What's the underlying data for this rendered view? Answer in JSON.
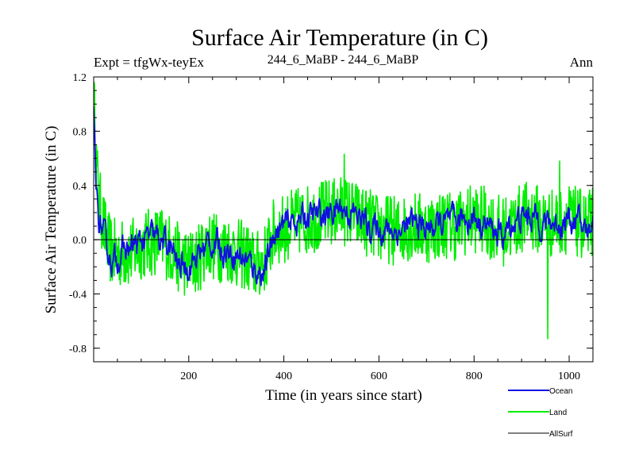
{
  "chart_data": {
    "type": "line",
    "title": "Surface Air Temperature (in C)",
    "subtitle_left": "Expt = tfgWx-teyEx",
    "subtitle_center": "244_6_MaBP - 244_6_MaBP",
    "subtitle_right": "Ann",
    "xlabel": "Time (in years since start)",
    "ylabel": "Surface Air Temperature (in C)",
    "xlim": [
      0,
      1050
    ],
    "ylim": [
      -0.9,
      1.2
    ],
    "x_ticks": [
      200,
      400,
      600,
      800,
      1000
    ],
    "x_tick_labels": [
      "200",
      "400",
      "600",
      "800",
      "1000"
    ],
    "y_ticks": [
      -0.8,
      -0.4,
      0.0,
      0.4,
      0.8,
      1.2
    ],
    "y_tick_labels": [
      "-0.8",
      "-0.4",
      "0.0",
      "0.4",
      "0.8",
      "1.2"
    ],
    "zero_line": true,
    "legend_position": "bottom-right",
    "series": [
      {
        "name": "Land",
        "color": "#00ee00",
        "points": [
          [
            0,
            1.08
          ],
          [
            5,
            0.62
          ],
          [
            10,
            0.32
          ],
          [
            20,
            0.12
          ],
          [
            30,
            -0.04
          ],
          [
            40,
            -0.1
          ],
          [
            60,
            -0.1
          ],
          [
            80,
            -0.1
          ],
          [
            100,
            -0.04
          ],
          [
            120,
            -0.02
          ],
          [
            140,
            0.0
          ],
          [
            160,
            -0.06
          ],
          [
            180,
            -0.14
          ],
          [
            200,
            -0.18
          ],
          [
            220,
            -0.14
          ],
          [
            240,
            -0.02
          ],
          [
            260,
            -0.06
          ],
          [
            280,
            -0.06
          ],
          [
            300,
            -0.1
          ],
          [
            320,
            -0.12
          ],
          [
            340,
            -0.2
          ],
          [
            360,
            -0.14
          ],
          [
            380,
            0.06
          ],
          [
            400,
            0.08
          ],
          [
            420,
            0.12
          ],
          [
            440,
            0.14
          ],
          [
            460,
            0.16
          ],
          [
            480,
            0.18
          ],
          [
            500,
            0.2
          ],
          [
            520,
            0.22
          ],
          [
            540,
            0.2
          ],
          [
            560,
            0.16
          ],
          [
            580,
            0.12
          ],
          [
            600,
            0.08
          ],
          [
            620,
            0.08
          ],
          [
            640,
            0.06
          ],
          [
            660,
            0.1
          ],
          [
            680,
            0.1
          ],
          [
            700,
            0.08
          ],
          [
            720,
            0.1
          ],
          [
            740,
            0.12
          ],
          [
            760,
            0.1
          ],
          [
            780,
            0.14
          ],
          [
            800,
            0.16
          ],
          [
            820,
            0.14
          ],
          [
            840,
            0.1
          ],
          [
            860,
            0.06
          ],
          [
            880,
            0.1
          ],
          [
            900,
            0.16
          ],
          [
            920,
            0.18
          ],
          [
            940,
            0.14
          ],
          [
            960,
            0.12
          ],
          [
            980,
            0.14
          ],
          [
            1000,
            0.16
          ],
          [
            1020,
            0.12
          ],
          [
            1040,
            0.1
          ],
          [
            1050,
            0.14
          ]
        ],
        "amplitude": 0.26,
        "spikes": [
          [
            955,
            -0.73
          ],
          [
            1040,
            -0.08
          ],
          [
            527,
            0.63
          ],
          [
            980,
            0.58
          ]
        ]
      },
      {
        "name": "Ocean",
        "color": "#1010e0",
        "points": [
          [
            0,
            0.92
          ],
          [
            5,
            0.38
          ],
          [
            10,
            0.16
          ],
          [
            20,
            0.04
          ],
          [
            30,
            -0.1
          ],
          [
            40,
            -0.16
          ],
          [
            60,
            -0.1
          ],
          [
            80,
            -0.06
          ],
          [
            100,
            -0.02
          ],
          [
            120,
            0.02
          ],
          [
            140,
            0.0
          ],
          [
            160,
            -0.06
          ],
          [
            180,
            -0.2
          ],
          [
            200,
            -0.18
          ],
          [
            220,
            -0.12
          ],
          [
            240,
            -0.02
          ],
          [
            260,
            -0.04
          ],
          [
            280,
            -0.08
          ],
          [
            300,
            -0.1
          ],
          [
            320,
            -0.14
          ],
          [
            340,
            -0.22
          ],
          [
            360,
            -0.24
          ],
          [
            380,
            0.06
          ],
          [
            400,
            0.1
          ],
          [
            420,
            0.14
          ],
          [
            440,
            0.16
          ],
          [
            460,
            0.18
          ],
          [
            480,
            0.18
          ],
          [
            500,
            0.2
          ],
          [
            520,
            0.24
          ],
          [
            540,
            0.2
          ],
          [
            560,
            0.16
          ],
          [
            580,
            0.1
          ],
          [
            600,
            0.08
          ],
          [
            620,
            0.08
          ],
          [
            640,
            0.06
          ],
          [
            660,
            0.1
          ],
          [
            680,
            0.12
          ],
          [
            700,
            0.08
          ],
          [
            720,
            0.1
          ],
          [
            740,
            0.12
          ],
          [
            760,
            0.12
          ],
          [
            780,
            0.16
          ],
          [
            800,
            0.16
          ],
          [
            820,
            0.12
          ],
          [
            840,
            0.08
          ],
          [
            860,
            0.02
          ],
          [
            880,
            0.12
          ],
          [
            900,
            0.16
          ],
          [
            920,
            0.18
          ],
          [
            940,
            0.14
          ],
          [
            960,
            0.12
          ],
          [
            980,
            0.12
          ],
          [
            1000,
            0.16
          ],
          [
            1020,
            0.12
          ],
          [
            1040,
            0.06
          ],
          [
            1050,
            0.18
          ]
        ],
        "amplitude": 0.07,
        "spikes": []
      },
      {
        "name": "AllSurf",
        "color": "#000000",
        "points": [],
        "amplitude": 0,
        "spikes": []
      }
    ]
  }
}
